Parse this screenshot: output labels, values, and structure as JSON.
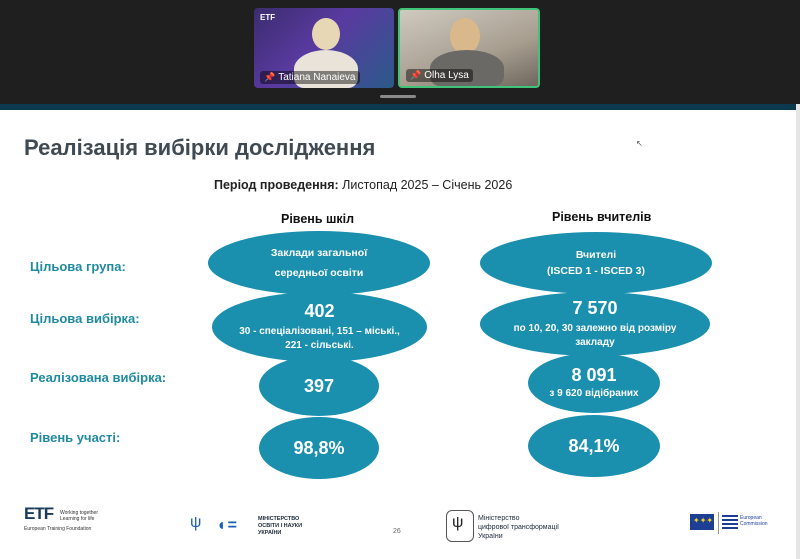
{
  "meeting": {
    "participants": [
      {
        "name": "Tatiana Nanaieva",
        "badge": "ETF"
      },
      {
        "name": "Olha Lysa"
      }
    ]
  },
  "slide": {
    "title": "Реалізація вибірки дослідження",
    "period_label": "Період проведення:",
    "period_value": " Листопад 2025 – Січень 2026",
    "columns": [
      "Рівень шкіл",
      "Рівень вчителів"
    ],
    "rows": [
      {
        "label": "Цільова група:",
        "schools": {
          "line1": "Заклади загальної",
          "line2": "середньої освіти"
        },
        "teachers": {
          "line1": "Вчителі",
          "line2": "(ISCED 1 - ISCED 3)"
        }
      },
      {
        "label": "Цільова вибірка:",
        "schools": {
          "big": "402",
          "line1": "30 - спеціалізовані, 151 – міські.,",
          "line2": "221 - сільські."
        },
        "teachers": {
          "big": "7 570",
          "line1": "по 10, 20, 30 залежно від розміру",
          "line2": "закладу"
        }
      },
      {
        "label": "Реалізована вибірка:",
        "schools": {
          "big": "397"
        },
        "teachers": {
          "big": "8 091",
          "line1": "з 9 620 відібраних"
        }
      },
      {
        "label": "Рівень участі:",
        "schools": {
          "big": "98,8%"
        },
        "teachers": {
          "big": "84,1%"
        }
      }
    ],
    "page_number": "26",
    "footer": {
      "etf_logo": "ETF",
      "etf_tagline": "Working together Learning for life",
      "etf_name": "European Training Foundation",
      "ministry_education": [
        "МІНІСТЕРСТВО",
        "ОСВІТИ І НАУКИ",
        "УКРАЇНИ"
      ],
      "ministry_digital": [
        "Міністерство",
        "цифрової трансформації",
        "України"
      ],
      "ec": [
        "European",
        "Commission"
      ]
    }
  },
  "colors": {
    "oval": "#1a8fae",
    "label": "#1f8aa0",
    "title": "#404a52"
  }
}
